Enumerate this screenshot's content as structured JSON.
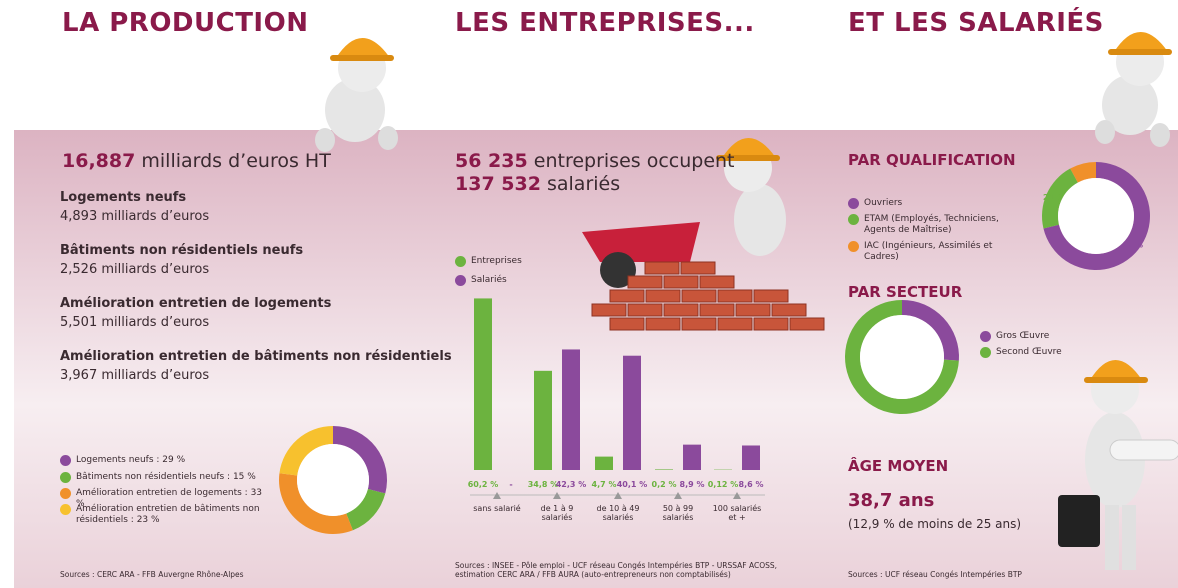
{
  "panels": [
    {
      "title": "LA PRODUCTION",
      "headline": {
        "number": "16,887",
        "text": "milliards d’euros HT"
      },
      "items": [
        {
          "label": "Logements neufs",
          "value": "4,893 milliards d’euros"
        },
        {
          "label": "Bâtiments non résidentiels neufs",
          "value": "2,526 milliards d’euros"
        },
        {
          "label": "Amélioration entretien de logements",
          "value": "5,501 milliards d’euros"
        },
        {
          "label": "Amélioration entretien de bâtiments non résidentiels",
          "value": "3,967 milliards d’euros"
        }
      ],
      "source": "Sources : CERC ARA - FFB Auvergne Rhône-Alpes"
    },
    {
      "title": "LES ENTREPRISES...",
      "headline": [
        {
          "number": "56 235",
          "text": "entreprises occupent"
        },
        {
          "number": "137 532",
          "text": "salariés"
        }
      ],
      "source": "Sources : INSEE - Pôle emploi - UCF réseau Congés Intempéries BTP - URSSAF ACOSS, estimation CERC ARA / FFB AURA (auto-entrepreneurs non comptabilisés)"
    },
    {
      "title": "ET LES SALARIÉS",
      "sections": [
        "PAR QUALIFICATION",
        "PAR SECTEUR",
        "ÂGE MOYEN"
      ],
      "age": {
        "value": "38,7 ans",
        "note": "(12,9 % de moins de 25 ans)"
      },
      "source": "Sources : UCF réseau Congés Intempéries BTP"
    }
  ],
  "chart_data": [
    {
      "type": "donut",
      "categories": [
        "Logements neufs : 29 %",
        "Bâtiments non résidentiels neufs : 15 %",
        "Amélioration entretien de logements : 33 %",
        "Amélioration entretien de bâtiments non résidentiels : 23 %"
      ],
      "values": [
        29,
        15,
        33,
        23
      ],
      "colors": [
        "#8b4a9c",
        "#6cb33f",
        "#f0902a",
        "#f7c12e"
      ]
    },
    {
      "type": "bar",
      "categories": [
        "sans salarié",
        "de 1 à 9 salariés",
        "de 10 à 49 salariés",
        "50 à 99 salariés",
        "100 salariés et +"
      ],
      "series": [
        {
          "name": "Entreprises",
          "color": "#6cb33f",
          "values": [
            60.2,
            34.8,
            4.7,
            0.2,
            0.12
          ],
          "value_labels": [
            "60,2 %",
            "34,8 %",
            "4,7 %",
            "0,2 %",
            "0,12 %"
          ]
        },
        {
          "name": "Salariés",
          "color": "#8b4a9c",
          "values": [
            null,
            42.3,
            40.1,
            8.9,
            8.6
          ],
          "value_labels": [
            "-",
            "42,3 %",
            "40,1 %",
            "8,9 %",
            "8,6 %"
          ]
        }
      ]
    },
    {
      "type": "donut",
      "categories": [
        "Ouvriers",
        "ETAM (Employés, Techniciens, Agents de Maîtrise)",
        "IAC (Ingénieurs, Assimilés et Cadres)"
      ],
      "values": [
        72,
        21,
        8
      ],
      "value_labels": [
        "72 %",
        "21 %",
        "8 %"
      ],
      "colors": [
        "#8b4a9c",
        "#6cb33f",
        "#f0902a"
      ]
    },
    {
      "type": "donut",
      "categories": [
        "Gros Œuvre",
        "Second Œuvre"
      ],
      "values": [
        26,
        74
      ],
      "value_labels": [
        "26 %",
        "74 %"
      ],
      "colors": [
        "#8b4a9c",
        "#6cb33f"
      ]
    }
  ]
}
